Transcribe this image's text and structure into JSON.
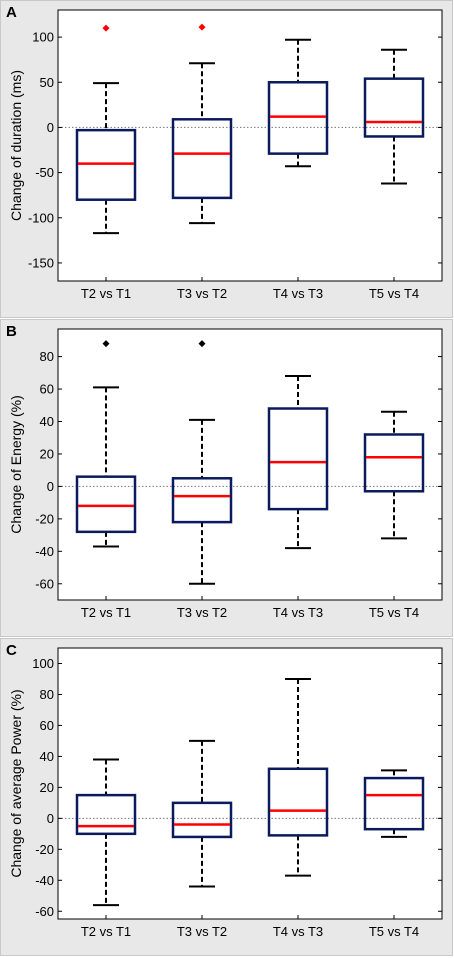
{
  "chart_data": [
    {
      "panel_label": "A",
      "type": "box",
      "ylabel": "Change of duration (ms)",
      "categories": [
        "T2 vs T1",
        "T3 vs T2",
        "T4 vs T3",
        "T5 vs T4"
      ],
      "ylim": [
        -170,
        130
      ],
      "yticks": [
        -150,
        -100,
        -50,
        0,
        50,
        100
      ],
      "reference_line": 0,
      "boxes": [
        {
          "whisker_low": -117,
          "q1": -80,
          "median": -40,
          "q3": -3,
          "whisker_high": 49,
          "outliers": [
            110
          ]
        },
        {
          "whisker_low": -106,
          "q1": -78,
          "median": -29,
          "q3": 9,
          "whisker_high": 71,
          "outliers": [
            111
          ]
        },
        {
          "whisker_low": -43,
          "q1": -29,
          "median": 12,
          "q3": 50,
          "whisker_high": 97,
          "outliers": []
        },
        {
          "whisker_low": -62,
          "q1": -10,
          "median": 6,
          "q3": 54,
          "whisker_high": 86,
          "outliers": []
        }
      ],
      "outlier_color": "#ff0000"
    },
    {
      "panel_label": "B",
      "type": "box",
      "ylabel": "Change of Energy (%)",
      "categories": [
        "T2 vs T1",
        "T3 vs T2",
        "T4 vs T3",
        "T5 vs T4"
      ],
      "ylim": [
        -70,
        97
      ],
      "yticks": [
        -60,
        -40,
        -20,
        0,
        20,
        40,
        60,
        80
      ],
      "reference_line": 0,
      "boxes": [
        {
          "whisker_low": -37,
          "q1": -28,
          "median": -12,
          "q3": 6,
          "whisker_high": 61,
          "outliers": [
            88
          ]
        },
        {
          "whisker_low": -60,
          "q1": -22,
          "median": -6,
          "q3": 5,
          "whisker_high": 41,
          "outliers": [
            88
          ]
        },
        {
          "whisker_low": -38,
          "q1": -14,
          "median": 15,
          "q3": 48,
          "whisker_high": 68,
          "outliers": []
        },
        {
          "whisker_low": -32,
          "q1": -3,
          "median": 18,
          "q3": 32,
          "whisker_high": 46,
          "outliers": []
        }
      ],
      "outlier_color": "#000000"
    },
    {
      "panel_label": "C",
      "type": "box",
      "ylabel": "Change of average Power (%)",
      "categories": [
        "T2 vs T1",
        "T3 vs T2",
        "T4 vs T3",
        "T5 vs T4"
      ],
      "ylim": [
        -65,
        110
      ],
      "yticks": [
        -60,
        -40,
        -20,
        0,
        20,
        40,
        60,
        80,
        100
      ],
      "reference_line": 0,
      "boxes": [
        {
          "whisker_low": -56,
          "q1": -10,
          "median": -5,
          "q3": 15,
          "whisker_high": 38,
          "outliers": []
        },
        {
          "whisker_low": -44,
          "q1": -12,
          "median": -4,
          "q3": 10,
          "whisker_high": 50,
          "outliers": []
        },
        {
          "whisker_low": -37,
          "q1": -11,
          "median": 5,
          "q3": 32,
          "whisker_high": 90,
          "outliers": []
        },
        {
          "whisker_low": -12,
          "q1": -7,
          "median": 15,
          "q3": 26,
          "whisker_high": 31,
          "outliers": []
        }
      ],
      "outlier_color": "#000000"
    }
  ],
  "colors": {
    "box": "#0a1a5c",
    "median": "#ff0000",
    "whisker": "#000000",
    "frame_bg": "#e8e8e8",
    "axes_bg": "#ffffff"
  }
}
